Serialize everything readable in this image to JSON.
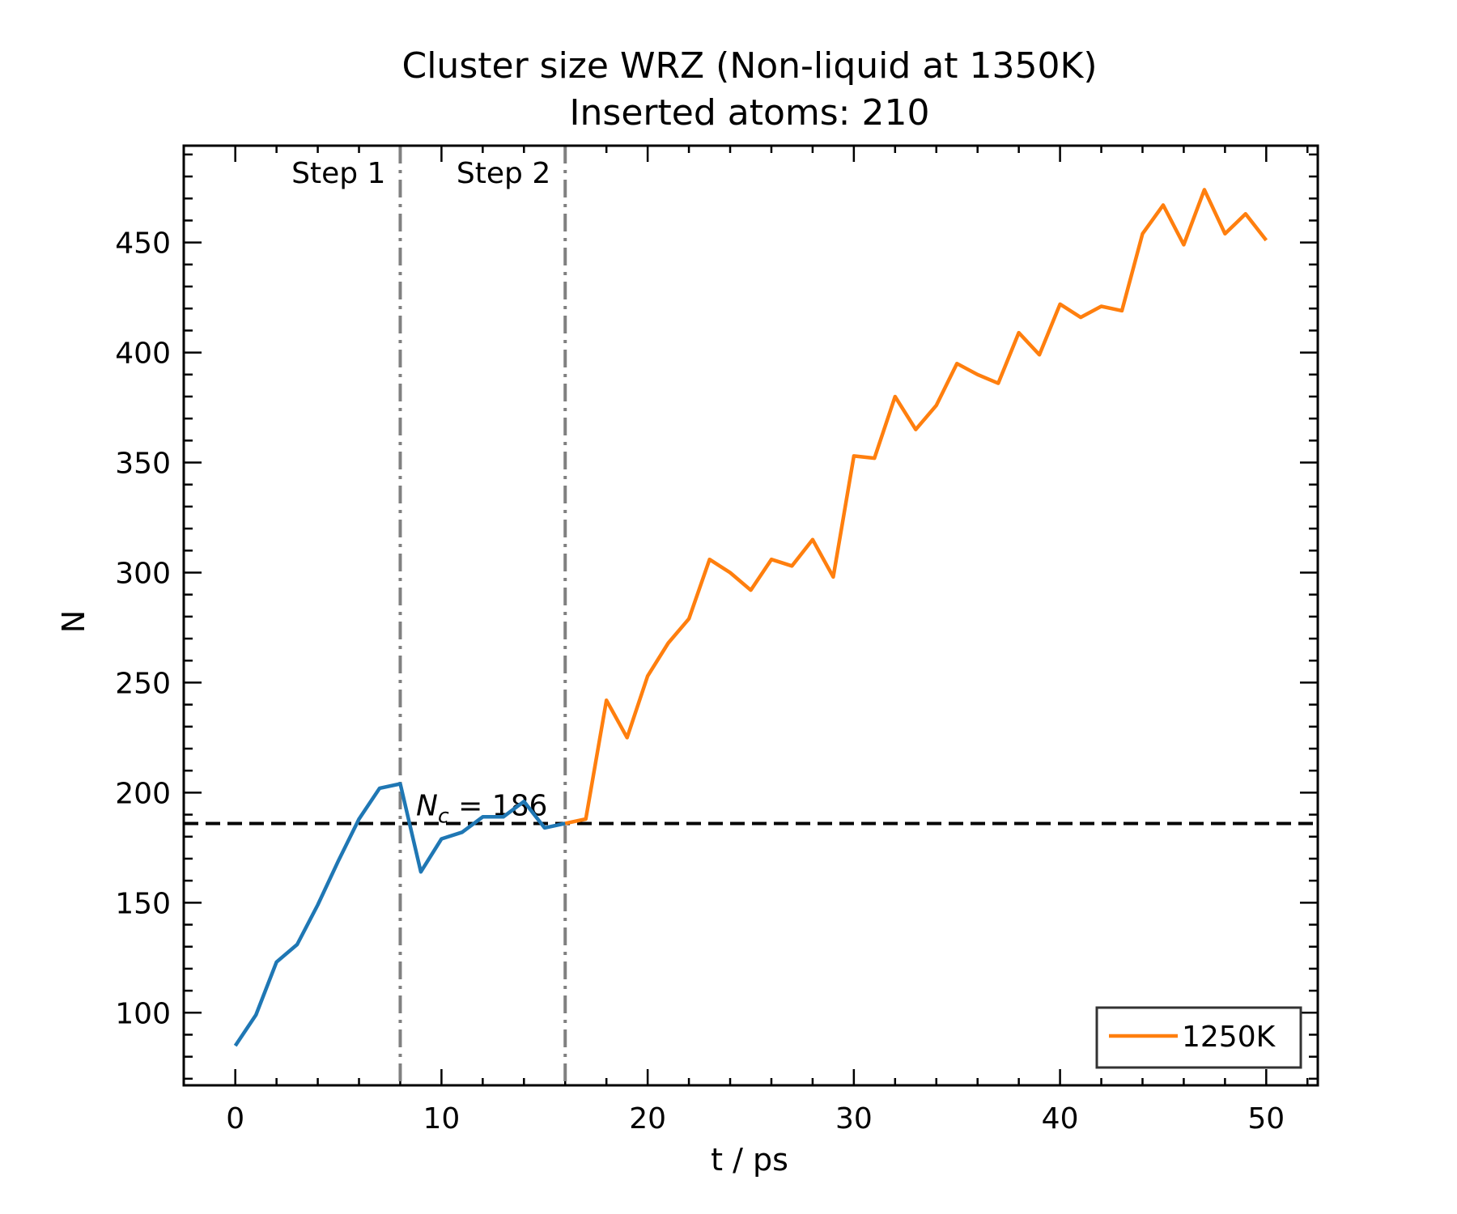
{
  "chart_data": {
    "type": "line",
    "title": "Cluster size WRZ (Non-liquid at 1350K)",
    "subtitle": "Inserted atoms: 210",
    "xlabel": "t / ps",
    "ylabel": "N",
    "xlim": [
      -2.5,
      52.5
    ],
    "ylim": [
      67,
      494
    ],
    "xticks": [
      0,
      10,
      20,
      30,
      40,
      50
    ],
    "yticks": [
      100,
      150,
      200,
      250,
      300,
      350,
      400,
      450
    ],
    "grid": false,
    "legend_position": "lower-right",
    "segment_lines": [
      {
        "x": 8,
        "label": "Step 1",
        "color": "#808080"
      },
      {
        "x": 16,
        "label": "Step 2",
        "color": "#808080"
      }
    ],
    "critical_line": {
      "y": 186,
      "label_main": "N",
      "label_sub": "c",
      "label_rest": " = 186",
      "color": "#000000"
    },
    "series": [
      {
        "color": "#1f77b4",
        "x": [
          0,
          1,
          2,
          3,
          4,
          5,
          6,
          7,
          8,
          9,
          10,
          11,
          12,
          13,
          14,
          15,
          16
        ],
        "y": [
          85,
          99,
          123,
          131,
          149,
          169,
          188,
          202,
          204,
          164,
          179,
          182,
          189,
          189,
          196,
          184,
          186
        ]
      },
      {
        "name": "1250K",
        "color": "#ff7f0e",
        "x": [
          16,
          17,
          18,
          19,
          20,
          21,
          22,
          23,
          24,
          25,
          26,
          27,
          28,
          29,
          30,
          31,
          32,
          33,
          34,
          35,
          36,
          37,
          38,
          39,
          40,
          41,
          42,
          43,
          44,
          45,
          46,
          47,
          48,
          49,
          50
        ],
        "y": [
          186,
          188,
          242,
          225,
          253,
          268,
          279,
          306,
          300,
          292,
          306,
          303,
          315,
          298,
          353,
          352,
          380,
          365,
          376,
          395,
          390,
          386,
          409,
          399,
          422,
          416,
          421,
          419,
          454,
          467,
          449,
          474,
          454,
          463,
          451
        ]
      }
    ]
  }
}
